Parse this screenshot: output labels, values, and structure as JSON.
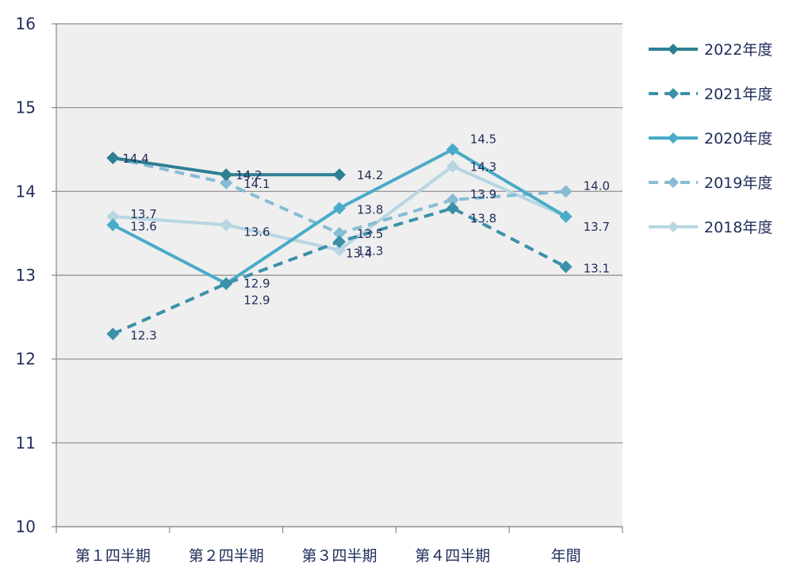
{
  "chart_data": {
    "type": "line",
    "categories": [
      "第１四半期",
      "第２四半期",
      "第３四半期",
      "第４四半期",
      "年間"
    ],
    "ylim": [
      10,
      16
    ],
    "yticks": [
      10,
      11,
      12,
      13,
      14,
      15,
      16
    ],
    "grid": true,
    "legend_position": "right",
    "series": [
      {
        "name": "2022年度",
        "values": [
          14.4,
          14.2,
          14.2,
          null,
          null
        ],
        "color": "#2f7f93",
        "dashed": false
      },
      {
        "name": "2021年度",
        "values": [
          12.3,
          12.9,
          13.4,
          13.8,
          13.1
        ],
        "color": "#3a91a8",
        "dashed": true
      },
      {
        "name": "2020年度",
        "values": [
          13.6,
          12.9,
          13.8,
          14.5,
          13.7
        ],
        "color": "#4aabc8",
        "dashed": false
      },
      {
        "name": "2019年度",
        "values": [
          14.4,
          14.1,
          13.5,
          13.9,
          14.0
        ],
        "color": "#86bcd4",
        "dashed": true
      },
      {
        "name": "2018年度",
        "values": [
          13.7,
          13.6,
          13.3,
          14.3,
          13.7
        ],
        "color": "#b7d6e1",
        "dashed": false
      }
    ],
    "data_labels": [
      {
        "text": "14.4",
        "series": 0,
        "point": 0
      },
      {
        "text": "14.2",
        "series": 0,
        "point": 1
      },
      {
        "text": "14.2",
        "series": 0,
        "point": 2
      },
      {
        "text": "12.3",
        "series": 1,
        "point": 0
      },
      {
        "text": "12.9",
        "series": 1,
        "point": 1
      },
      {
        "text": "13.4",
        "series": 1,
        "point": 2
      },
      {
        "text": "13.8",
        "series": 1,
        "point": 3
      },
      {
        "text": "13.1",
        "series": 1,
        "point": 4
      },
      {
        "text": "13.6",
        "series": 2,
        "point": 0
      },
      {
        "text": "12.9",
        "series": 2,
        "point": 1
      },
      {
        "text": "13.8",
        "series": 2,
        "point": 2
      },
      {
        "text": "14.5",
        "series": 2,
        "point": 3
      },
      {
        "text": "13.7",
        "series": 2,
        "point": 4
      },
      {
        "text": "14.1",
        "series": 3,
        "point": 1
      },
      {
        "text": "13.5",
        "series": 3,
        "point": 2
      },
      {
        "text": "13.9",
        "series": 3,
        "point": 3
      },
      {
        "text": "14.0",
        "series": 3,
        "point": 4
      },
      {
        "text": "13.7",
        "series": 4,
        "point": 0
      },
      {
        "text": "13.6",
        "series": 4,
        "point": 1
      },
      {
        "text": "13.3",
        "series": 4,
        "point": 2
      },
      {
        "text": "14.3",
        "series": 4,
        "point": 3
      }
    ]
  }
}
